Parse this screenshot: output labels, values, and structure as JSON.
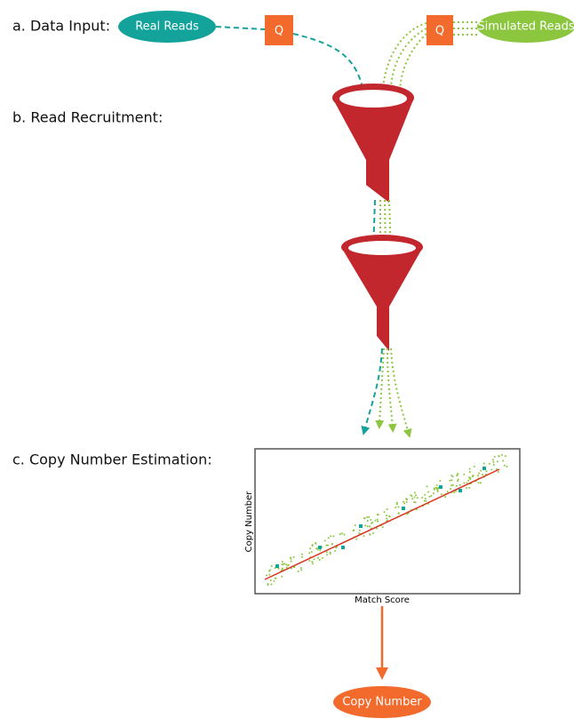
{
  "sections": [
    "a. Data Input:",
    "b. Read Recruitment:",
    "c. Copy Number Estimation:"
  ],
  "inputs": {
    "real": "Real Reads",
    "simulated": "Simulated Reads",
    "quality_left": "Q",
    "quality_right": "Q"
  },
  "plot": {
    "y_label": "Copy Number",
    "x_label": "Match Score"
  },
  "output": "Copy Number"
}
